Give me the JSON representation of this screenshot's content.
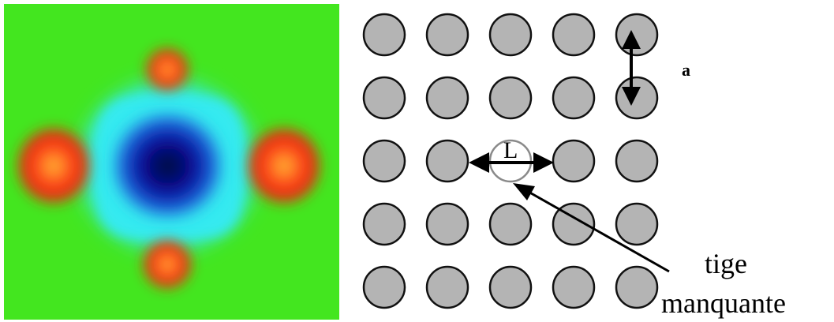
{
  "lattice": {
    "rows": 5,
    "cols": 5,
    "missing": {
      "row": 3,
      "col": 3
    },
    "rod_color": "#b4b4b4",
    "rod_outline": "#111111",
    "missing_outline": "#8a8a8a"
  },
  "labels": {
    "lattice_constant": "a",
    "defect_length": "L",
    "missing_rod_line1": "tige",
    "missing_rod_line2": "manquante"
  },
  "field_map": {
    "colors": {
      "background": "#43e61f",
      "cyan": "#34eaf0",
      "blue_core": "#0a0f8c",
      "red": "#ff3a1a",
      "orange": "#ffaa2a"
    }
  }
}
